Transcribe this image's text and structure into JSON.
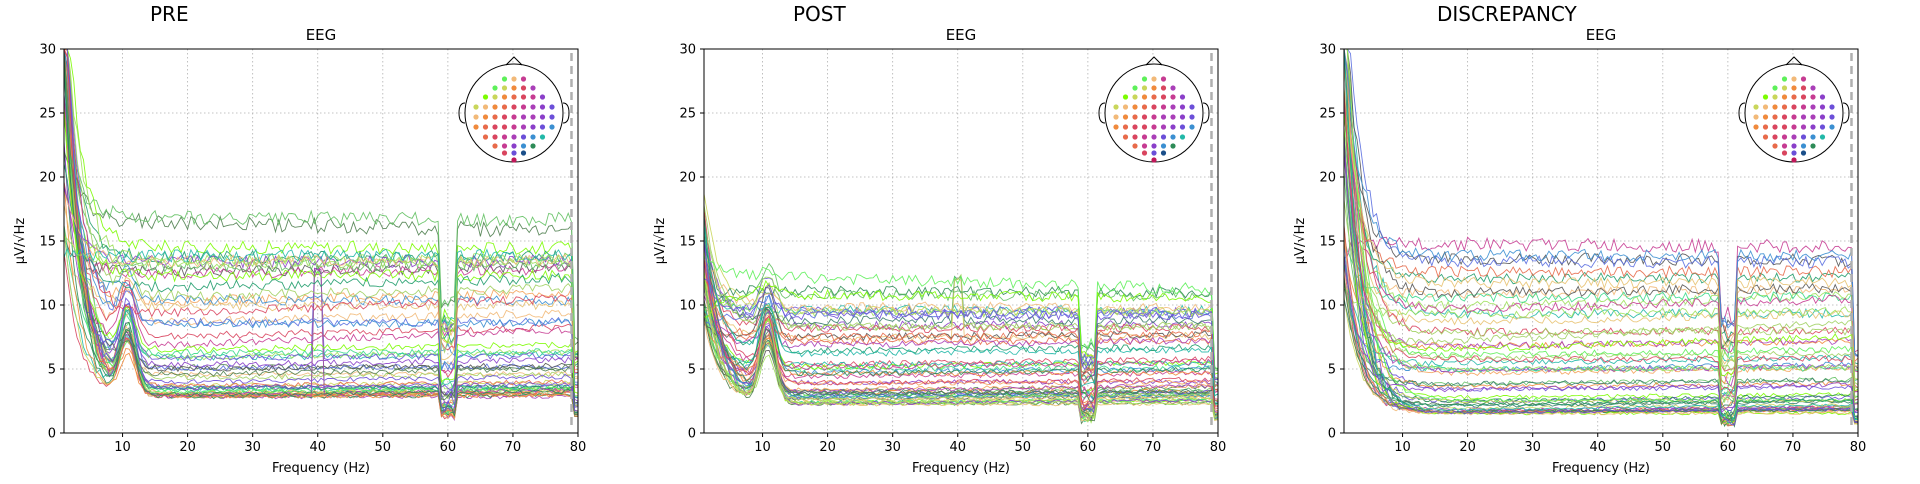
{
  "panels": [
    {
      "heading": "PRE"
    },
    {
      "heading": "POST"
    },
    {
      "heading": "DISCREPANCY"
    }
  ],
  "colors": {
    "grid": "#b0b0b0",
    "axis": "#000000",
    "line_marker": "#b0b0b0",
    "head_outline": "#000000"
  },
  "chart_data": [
    {
      "type": "line",
      "title": "EEG",
      "xlabel": "Frequency (Hz)",
      "ylabel": "µV/√Hz",
      "xlim": [
        1,
        80
      ],
      "ylim": [
        0,
        30
      ],
      "xticks": [
        10,
        20,
        30,
        40,
        50,
        60,
        70,
        80
      ],
      "yticks": [
        0,
        5,
        10,
        15,
        20,
        25,
        30
      ],
      "grid": true,
      "legend": "sensor-location inset, top-right",
      "vertical_marker_x": 79,
      "series_count": 59,
      "note_features": "alpha peak ~10 Hz, line-noise notch at 60 Hz, 40 Hz peak on some channels",
      "profile": {
        "low_start": [
          14,
          40
        ],
        "alpha_peak": 8.5,
        "plateau": [
          2.8,
          18
        ],
        "spread_high": 14,
        "peak40": 12.5
      }
    },
    {
      "type": "line",
      "title": "EEG",
      "xlabel": "Frequency (Hz)",
      "ylabel": "µV/√Hz",
      "xlim": [
        1,
        80
      ],
      "ylim": [
        0,
        30
      ],
      "xticks": [
        10,
        20,
        30,
        40,
        50,
        60,
        70,
        80
      ],
      "yticks": [
        0,
        5,
        10,
        15,
        20,
        25,
        30
      ],
      "grid": true,
      "legend": "sensor-location inset, top-right",
      "vertical_marker_x": 79,
      "series_count": 59,
      "profile": {
        "low_start": [
          8,
          19
        ],
        "alpha_peak": 8.8,
        "plateau": [
          2.2,
          12.5
        ],
        "spread_high": 9,
        "peak40": 12
      }
    },
    {
      "type": "line",
      "title": "EEG",
      "xlabel": "Frequency (Hz)",
      "ylabel": "µV/√Hz",
      "xlim": [
        1,
        80
      ],
      "ylim": [
        0,
        30
      ],
      "xticks": [
        10,
        20,
        30,
        40,
        50,
        60,
        70,
        80
      ],
      "yticks": [
        0,
        5,
        10,
        15,
        20,
        25,
        30
      ],
      "grid": true,
      "legend": "sensor-location inset, top-right",
      "vertical_marker_x": 79,
      "series_count": 59,
      "profile": {
        "low_start": [
          10,
          40
        ],
        "alpha_peak": 0,
        "plateau": [
          1.5,
          15
        ],
        "spread_high": 13,
        "peak40": 0
      }
    }
  ]
}
